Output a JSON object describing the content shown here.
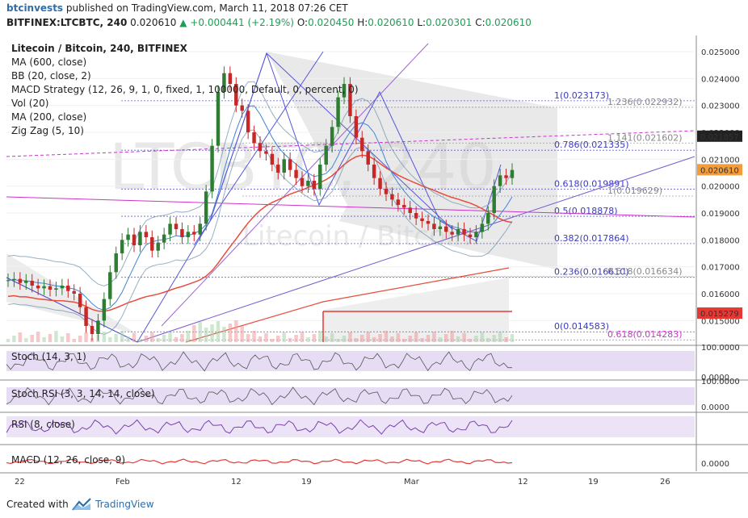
{
  "header": {
    "author": "btcinvests",
    "published_text": "published on TradingView.com, March 11, 2018 07:26 CET",
    "symbol": "BITFINEX:LTCBTC, 240",
    "price": "0.020610",
    "change": "+0.000441 (+2.19%)",
    "o_label": "O:",
    "o": "0.020450",
    "h_label": "H:",
    "h": "0.020610",
    "l_label": "L:",
    "l": "0.020301",
    "c_label": "C:",
    "c": "0.020610",
    "up_arrow": "▲"
  },
  "legend": {
    "title": "Litecoin / Bitcoin, 240, BITFINEX",
    "items": [
      "MA (600, close)",
      "BB (20, close, 2)",
      "MACD Strategy (12, 26, 9, 1, 0, fixed, 1, 100000, Default, 0, percent, 0)",
      "Vol (20)",
      "MA (200, close)",
      "Zig Zag (5, 10)"
    ]
  },
  "watermark": "LTCBTC, 240",
  "watermark2": "Litecoin / Bitcoin",
  "chart_data": {
    "type": "candlestick",
    "y_axis": [
      "0.025000",
      "0.024000",
      "0.023000",
      "0.022000",
      "0.021000",
      "0.020000",
      "0.019000",
      "0.018000",
      "0.017000",
      "0.016000",
      "0.015000"
    ],
    "ylim": [
      0.0142,
      0.0256
    ],
    "price_tags": [
      {
        "value": "0.021857",
        "color": "#222222"
      },
      {
        "value": "0.020610",
        "color": "#f39c3c"
      },
      {
        "value": "0.015279",
        "color": "#e53935"
      }
    ],
    "x_labels": [
      "22",
      "Feb",
      "12",
      "19",
      "Mar",
      "12",
      "19",
      "26"
    ],
    "fib_levels": [
      {
        "label": "1(0.023173)",
        "value": 0.023173,
        "color": "#3b3bbf"
      },
      {
        "label": "0.786(0.021335)",
        "value": 0.021335,
        "color": "#3b3bbf"
      },
      {
        "label": "0.618(0.019891)",
        "value": 0.019891,
        "color": "#3b3bbf"
      },
      {
        "label": "0.5(0.018878)",
        "value": 0.018878,
        "color": "#3b3bbf"
      },
      {
        "label": "0.382(0.017864)",
        "value": 0.017864,
        "color": "#3b3bbf"
      },
      {
        "label": "0.236(0.016610)",
        "value": 0.01661,
        "color": "#3b3bbf"
      },
      {
        "label": "0(0.014583)",
        "value": 0.014583,
        "color": "#3b3bbf"
      },
      {
        "label": "1.236(0.022932)",
        "value": 0.022932,
        "color": "#888888"
      },
      {
        "label": "1.141(0.021602)",
        "value": 0.021602,
        "color": "#888888"
      },
      {
        "label": "1(0.019629)",
        "value": 0.019629,
        "color": "#888888"
      },
      {
        "label": "0.618(0.016634)",
        "value": 0.016634,
        "color": "#888888"
      },
      {
        "label": "0.618(0.014283)",
        "value": 0.014283,
        "color": "#cc33cc"
      }
    ],
    "closes": [
      0.0165,
      0.01655,
      0.0164,
      0.01648,
      0.0163,
      0.0162,
      0.01628,
      0.01615,
      0.0162,
      0.0163,
      0.0161,
      0.016,
      0.0155,
      0.0148,
      0.0145,
      0.015,
      0.0158,
      0.0168,
      0.0175,
      0.018,
      0.0182,
      0.0178,
      0.0183,
      0.0181,
      0.0176,
      0.0179,
      0.0182,
      0.0186,
      0.0184,
      0.0181,
      0.0183,
      0.0182,
      0.0186,
      0.0198,
      0.0215,
      0.0235,
      0.0242,
      0.0238,
      0.023,
      0.0228,
      0.022,
      0.0216,
      0.0213,
      0.0212,
      0.0208,
      0.0205,
      0.021,
      0.0206,
      0.0203,
      0.02,
      0.0202,
      0.0199,
      0.0208,
      0.0215,
      0.0222,
      0.0233,
      0.0238,
      0.0226,
      0.0218,
      0.0213,
      0.0208,
      0.0203,
      0.0199,
      0.0197,
      0.0195,
      0.0193,
      0.0192,
      0.019,
      0.0188,
      0.0187,
      0.0186,
      0.0184,
      0.0185,
      0.0183,
      0.0182,
      0.0184,
      0.0182,
      0.0181,
      0.0183,
      0.0186,
      0.019,
      0.02,
      0.0204,
      0.0203,
      0.0206
    ],
    "oscillators": [
      {
        "label": "Stoch (14, 3, 1)",
        "ticks": [
          "100.0000",
          "0.0000"
        ]
      },
      {
        "label": "Stoch RSI (3, 3, 14, 14, close)",
        "ticks": [
          "100.0000",
          "0.0000"
        ]
      },
      {
        "label": "RSI (8, close)",
        "ticks": []
      },
      {
        "label": "MACD (12, 26, close, 9)",
        "ticks": [
          "0.0000"
        ]
      }
    ]
  },
  "footer": {
    "created_with": "Created with",
    "brand": "TradingView"
  }
}
